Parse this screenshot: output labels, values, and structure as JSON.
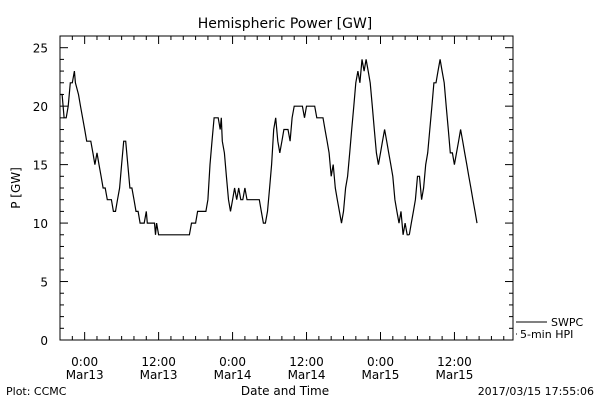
{
  "chart_data": {
    "type": "line",
    "title": "Hemispheric Power [GW]",
    "xlabel": "Date and Time",
    "ylabel": "P [GW]",
    "ylim": [
      0,
      26
    ],
    "yticks": [
      0,
      5,
      10,
      15,
      20,
      25
    ],
    "xlim": [
      "2017-03-12T20:00",
      "2017-03-15T21:30"
    ],
    "xticks": [
      {
        "t": "2017-03-13T00:00",
        "line1": "0:00",
        "line2": "Mar13"
      },
      {
        "t": "2017-03-13T12:00",
        "line1": "12:00",
        "line2": "Mar13"
      },
      {
        "t": "2017-03-14T00:00",
        "line1": "0:00",
        "line2": "Mar14"
      },
      {
        "t": "2017-03-14T12:00",
        "line1": "12:00",
        "line2": "Mar14"
      },
      {
        "t": "2017-03-15T00:00",
        "line1": "0:00",
        "line2": "Mar15"
      },
      {
        "t": "2017-03-15T12:00",
        "line1": "12:00",
        "line2": "Mar15"
      }
    ],
    "legend": {
      "placement": "bottom-right",
      "entries": [
        "SWPC",
        "5-min HPI"
      ]
    },
    "line_color": "#000000",
    "series": [
      {
        "name": "SWPC",
        "points": [
          [
            "2017-03-12T20:00",
            21
          ],
          [
            "2017-03-12T20:20",
            21
          ],
          [
            "2017-03-12T20:40",
            19
          ],
          [
            "2017-03-12T21:00",
            19
          ],
          [
            "2017-03-12T21:20",
            20
          ],
          [
            "2017-03-12T21:40",
            22
          ],
          [
            "2017-03-12T22:00",
            22
          ],
          [
            "2017-03-12T22:20",
            23
          ],
          [
            "2017-03-12T22:30",
            22
          ],
          [
            "2017-03-12T23:00",
            21
          ],
          [
            "2017-03-12T23:20",
            20
          ],
          [
            "2017-03-12T23:40",
            19
          ],
          [
            "2017-03-13T00:00",
            18
          ],
          [
            "2017-03-13T00:20",
            17
          ],
          [
            "2017-03-13T01:00",
            17
          ],
          [
            "2017-03-13T01:20",
            16
          ],
          [
            "2017-03-13T01:40",
            15
          ],
          [
            "2017-03-13T02:00",
            16
          ],
          [
            "2017-03-13T02:20",
            15
          ],
          [
            "2017-03-13T02:40",
            14
          ],
          [
            "2017-03-13T03:00",
            13
          ],
          [
            "2017-03-13T03:20",
            13
          ],
          [
            "2017-03-13T03:40",
            12
          ],
          [
            "2017-03-13T04:20",
            12
          ],
          [
            "2017-03-13T04:40",
            11
          ],
          [
            "2017-03-13T05:00",
            11
          ],
          [
            "2017-03-13T05:20",
            12
          ],
          [
            "2017-03-13T05:40",
            13
          ],
          [
            "2017-03-13T06:00",
            15
          ],
          [
            "2017-03-13T06:20",
            17
          ],
          [
            "2017-03-13T06:40",
            17
          ],
          [
            "2017-03-13T07:00",
            15
          ],
          [
            "2017-03-13T07:20",
            13
          ],
          [
            "2017-03-13T07:40",
            13
          ],
          [
            "2017-03-13T08:00",
            12
          ],
          [
            "2017-03-13T08:20",
            11
          ],
          [
            "2017-03-13T08:40",
            11
          ],
          [
            "2017-03-13T09:00",
            10
          ],
          [
            "2017-03-13T09:40",
            10
          ],
          [
            "2017-03-13T10:00",
            11
          ],
          [
            "2017-03-13T10:10",
            10
          ],
          [
            "2017-03-13T11:20",
            10
          ],
          [
            "2017-03-13T11:30",
            9
          ],
          [
            "2017-03-13T11:40",
            10
          ],
          [
            "2017-03-13T12:00",
            9
          ],
          [
            "2017-03-13T17:00",
            9
          ],
          [
            "2017-03-13T17:20",
            10
          ],
          [
            "2017-03-13T18:00",
            10
          ],
          [
            "2017-03-13T18:20",
            11
          ],
          [
            "2017-03-13T19:40",
            11
          ],
          [
            "2017-03-13T20:00",
            12
          ],
          [
            "2017-03-13T20:20",
            15
          ],
          [
            "2017-03-13T20:40",
            17
          ],
          [
            "2017-03-13T21:00",
            19
          ],
          [
            "2017-03-13T21:40",
            19
          ],
          [
            "2017-03-13T22:00",
            18
          ],
          [
            "2017-03-13T22:10",
            19
          ],
          [
            "2017-03-13T22:20",
            17
          ],
          [
            "2017-03-13T22:40",
            16
          ],
          [
            "2017-03-13T23:00",
            14
          ],
          [
            "2017-03-13T23:20",
            12
          ],
          [
            "2017-03-13T23:40",
            11
          ],
          [
            "2017-03-14T00:00",
            12
          ],
          [
            "2017-03-14T00:20",
            13
          ],
          [
            "2017-03-14T00:40",
            12
          ],
          [
            "2017-03-14T01:00",
            13
          ],
          [
            "2017-03-14T01:20",
            12
          ],
          [
            "2017-03-14T01:40",
            12
          ],
          [
            "2017-03-14T02:00",
            13
          ],
          [
            "2017-03-14T02:20",
            12
          ],
          [
            "2017-03-14T04:20",
            12
          ],
          [
            "2017-03-14T04:40",
            11
          ],
          [
            "2017-03-14T05:00",
            10
          ],
          [
            "2017-03-14T05:20",
            10
          ],
          [
            "2017-03-14T05:40",
            11
          ],
          [
            "2017-03-14T06:00",
            13
          ],
          [
            "2017-03-14T06:20",
            15
          ],
          [
            "2017-03-14T06:40",
            18
          ],
          [
            "2017-03-14T07:00",
            19
          ],
          [
            "2017-03-14T07:20",
            17
          ],
          [
            "2017-03-14T07:40",
            16
          ],
          [
            "2017-03-14T08:00",
            17
          ],
          [
            "2017-03-14T08:20",
            18
          ],
          [
            "2017-03-14T09:00",
            18
          ],
          [
            "2017-03-14T09:20",
            17
          ],
          [
            "2017-03-14T09:40",
            19
          ],
          [
            "2017-03-14T10:00",
            20
          ],
          [
            "2017-03-14T11:20",
            20
          ],
          [
            "2017-03-14T11:40",
            19
          ],
          [
            "2017-03-14T12:00",
            20
          ],
          [
            "2017-03-14T13:20",
            20
          ],
          [
            "2017-03-14T13:40",
            19
          ],
          [
            "2017-03-14T14:40",
            19
          ],
          [
            "2017-03-14T15:00",
            18
          ],
          [
            "2017-03-14T15:20",
            17
          ],
          [
            "2017-03-14T15:40",
            16
          ],
          [
            "2017-03-14T16:00",
            14
          ],
          [
            "2017-03-14T16:20",
            15
          ],
          [
            "2017-03-14T16:40",
            13
          ],
          [
            "2017-03-14T17:00",
            12
          ],
          [
            "2017-03-14T17:20",
            11
          ],
          [
            "2017-03-14T17:40",
            10
          ],
          [
            "2017-03-14T18:00",
            11
          ],
          [
            "2017-03-14T18:20",
            13
          ],
          [
            "2017-03-14T18:40",
            14
          ],
          [
            "2017-03-14T19:00",
            16
          ],
          [
            "2017-03-14T19:20",
            18
          ],
          [
            "2017-03-14T19:40",
            20
          ],
          [
            "2017-03-14T20:00",
            22
          ],
          [
            "2017-03-14T20:20",
            23
          ],
          [
            "2017-03-14T20:40",
            22
          ],
          [
            "2017-03-14T21:00",
            24
          ],
          [
            "2017-03-14T21:20",
            23
          ],
          [
            "2017-03-14T21:40",
            24
          ],
          [
            "2017-03-14T22:00",
            23
          ],
          [
            "2017-03-14T22:20",
            22
          ],
          [
            "2017-03-14T22:40",
            20
          ],
          [
            "2017-03-14T23:00",
            18
          ],
          [
            "2017-03-14T23:20",
            16
          ],
          [
            "2017-03-14T23:40",
            15
          ],
          [
            "2017-03-15T00:00",
            16
          ],
          [
            "2017-03-15T00:20",
            17
          ],
          [
            "2017-03-15T00:40",
            18
          ],
          [
            "2017-03-15T01:00",
            17
          ],
          [
            "2017-03-15T01:20",
            16
          ],
          [
            "2017-03-15T01:40",
            15
          ],
          [
            "2017-03-15T02:00",
            14
          ],
          [
            "2017-03-15T02:20",
            12
          ],
          [
            "2017-03-15T02:40",
            11
          ],
          [
            "2017-03-15T03:00",
            10
          ],
          [
            "2017-03-15T03:20",
            11
          ],
          [
            "2017-03-15T03:40",
            9
          ],
          [
            "2017-03-15T04:00",
            10
          ],
          [
            "2017-03-15T04:20",
            9
          ],
          [
            "2017-03-15T04:40",
            9
          ]
        ]
      },
      {
        "name": "5-min HPI",
        "points": [
          [
            "2017-03-15T04:40",
            9
          ],
          [
            "2017-03-15T05:00",
            10
          ],
          [
            "2017-03-15T05:20",
            11
          ],
          [
            "2017-03-15T05:40",
            12
          ],
          [
            "2017-03-15T06:00",
            14
          ],
          [
            "2017-03-15T06:20",
            14
          ],
          [
            "2017-03-15T06:40",
            12
          ],
          [
            "2017-03-15T07:00",
            13
          ],
          [
            "2017-03-15T07:20",
            15
          ],
          [
            "2017-03-15T07:40",
            16
          ],
          [
            "2017-03-15T08:00",
            18
          ],
          [
            "2017-03-15T08:20",
            20
          ],
          [
            "2017-03-15T08:40",
            22
          ],
          [
            "2017-03-15T09:00",
            22
          ],
          [
            "2017-03-15T09:20",
            23
          ],
          [
            "2017-03-15T09:40",
            24
          ],
          [
            "2017-03-15T10:00",
            23
          ],
          [
            "2017-03-15T10:20",
            22
          ],
          [
            "2017-03-15T10:40",
            20
          ],
          [
            "2017-03-15T11:00",
            18
          ],
          [
            "2017-03-15T11:20",
            16
          ],
          [
            "2017-03-15T11:40",
            16
          ],
          [
            "2017-03-15T12:00",
            15
          ],
          [
            "2017-03-15T12:20",
            16
          ],
          [
            "2017-03-15T12:40",
            17
          ],
          [
            "2017-03-15T13:00",
            18
          ],
          [
            "2017-03-15T13:20",
            17
          ],
          [
            "2017-03-15T13:40",
            16
          ],
          [
            "2017-03-15T14:00",
            15
          ],
          [
            "2017-03-15T14:20",
            14
          ],
          [
            "2017-03-15T14:40",
            13
          ],
          [
            "2017-03-15T15:00",
            12
          ],
          [
            "2017-03-15T15:20",
            11
          ],
          [
            "2017-03-15T15:40",
            10
          ]
        ]
      }
    ]
  },
  "footer": {
    "left": "Plot: CCMC",
    "right": "2017/03/15 17:55:06"
  }
}
